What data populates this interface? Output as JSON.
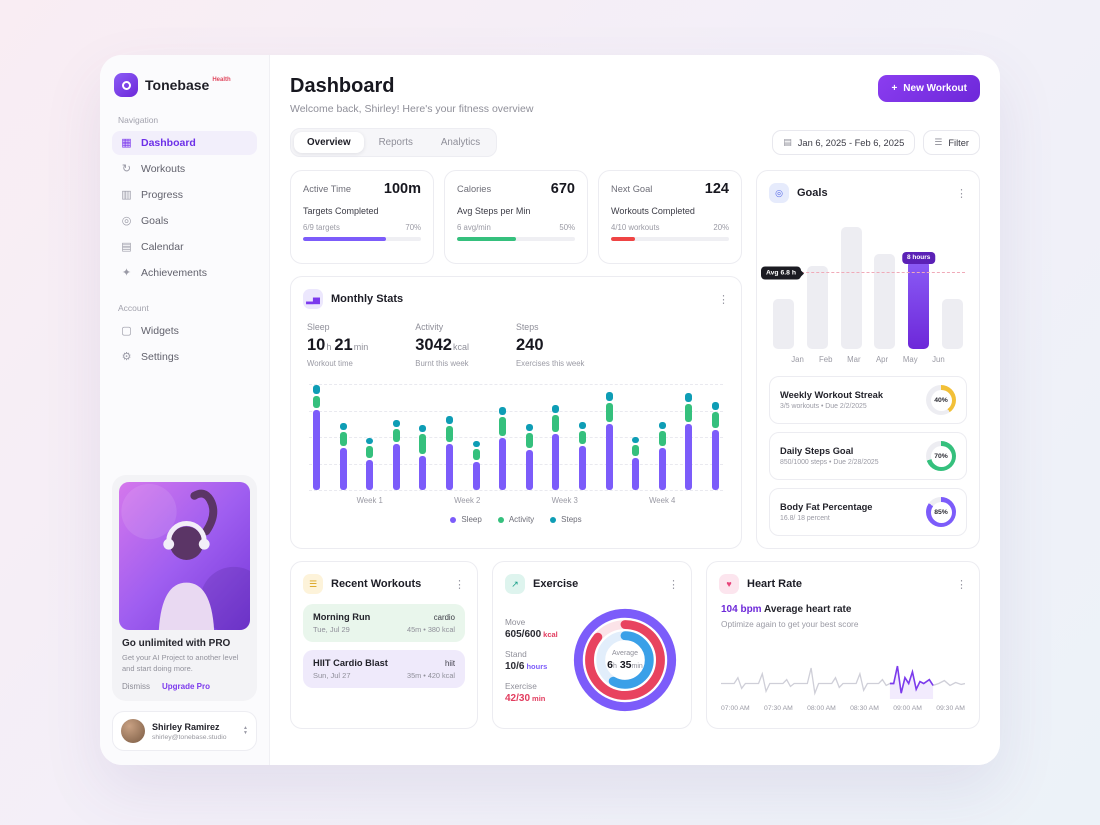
{
  "brand": {
    "name": "Tonebase",
    "badge": "Health"
  },
  "sidebar": {
    "nav_label": "Navigation",
    "nav_items": [
      {
        "label": "Dashboard",
        "glyph": "▦",
        "active": true
      },
      {
        "label": "Workouts",
        "glyph": "↻",
        "active": false
      },
      {
        "label": "Progress",
        "glyph": "▥",
        "active": false
      },
      {
        "label": "Goals",
        "glyph": "◎",
        "active": false
      },
      {
        "label": "Calendar",
        "glyph": "▤",
        "active": false
      },
      {
        "label": "Achievements",
        "glyph": "✦",
        "active": false
      }
    ],
    "account_label": "Account",
    "account_items": [
      {
        "label": "Widgets",
        "glyph": "▢",
        "active": false
      },
      {
        "label": "Settings",
        "glyph": "⚙",
        "active": false
      }
    ],
    "promo": {
      "title": "Go unlimited with PRO",
      "body": "Get your AI Project to another level and start doing more.",
      "dismiss_label": "Dismiss",
      "upgrade_label": "Upgrade Pro"
    },
    "profile": {
      "name": "Shirley Ramirez",
      "email": "shirley@tonebase.studio"
    }
  },
  "header": {
    "title": "Dashboard",
    "subtitle": "Welcome back, Shirley! Here's your fitness overview",
    "new_workout_label": "New Workout",
    "plus_glyph": "+"
  },
  "tabs": [
    {
      "label": "Overview",
      "active": true
    },
    {
      "label": "Reports",
      "active": false
    },
    {
      "label": "Analytics",
      "active": false
    }
  ],
  "toolbar": {
    "date_range": "Jan 6, 2025 - Feb 6, 2025",
    "date_icon_glyph": "▤",
    "filter_label": "Filter",
    "filter_icon_glyph": "☰"
  },
  "stat_cards": [
    {
      "title": "Active Time",
      "value": "100m",
      "sub_title": "Targets Completed",
      "sub_value": "6/9 targets",
      "percent": 70,
      "percent_label": "70%",
      "color": "#7c5cfa"
    },
    {
      "title": "Calories",
      "value": "670",
      "sub_title": "Avg Steps per Min",
      "sub_value": "6 avg/min",
      "percent": 50,
      "percent_label": "50%",
      "color": "#35c07d"
    },
    {
      "title": "Next Goal",
      "value": "124",
      "sub_title": "Workouts Completed",
      "sub_value": "4/10 workouts",
      "percent": 20,
      "percent_label": "20%",
      "color": "#ef4444"
    }
  ],
  "monthly": {
    "title": "Monthly Stats",
    "icon_glyph": "▂▅",
    "stats": [
      {
        "label": "Sleep",
        "parts": [
          {
            "num": "10",
            "unit": "h"
          },
          {
            "num": "21",
            "unit": "min"
          }
        ],
        "caption": "Workout time"
      },
      {
        "label": "Activity",
        "parts": [
          {
            "num": "3042",
            "unit": "kcal"
          }
        ],
        "caption": "Burnt this week"
      },
      {
        "label": "Steps",
        "parts": [
          {
            "num": "240",
            "unit": ""
          }
        ],
        "caption": "Exercises this week"
      }
    ],
    "legend": [
      {
        "label": "Sleep",
        "color": "#7c5cfa"
      },
      {
        "label": "Activity",
        "color": "#35c07d"
      },
      {
        "label": "Steps",
        "color": "#0e9db5"
      }
    ],
    "chart": {
      "type": "stacked-bar",
      "week_labels": [
        "Week 1",
        "Week 2",
        "Week 3",
        "Week 4"
      ],
      "series_order": [
        "sleep",
        "activity",
        "steps"
      ],
      "bars": [
        [
          8.0,
          1.2,
          0.9
        ],
        [
          4.2,
          1.4,
          0.7
        ],
        [
          3.0,
          1.2,
          0.6
        ],
        [
          4.6,
          1.3,
          0.7
        ],
        [
          3.4,
          2.0,
          0.7
        ],
        [
          4.6,
          1.6,
          0.8
        ],
        [
          2.8,
          1.1,
          0.6
        ],
        [
          5.2,
          1.9,
          0.8
        ],
        [
          4.0,
          1.5,
          0.7
        ],
        [
          5.6,
          1.7,
          0.8
        ],
        [
          4.4,
          1.3,
          0.7
        ],
        [
          6.6,
          1.9,
          0.9
        ],
        [
          3.2,
          1.1,
          0.6
        ],
        [
          4.2,
          1.5,
          0.7
        ],
        [
          6.6,
          1.8,
          0.9
        ],
        [
          6.0,
          1.6,
          0.8
        ]
      ]
    }
  },
  "goals": {
    "title": "Goals",
    "icon_glyph": "◎",
    "chart": {
      "type": "bar",
      "months": [
        "Jan",
        "Feb",
        "Mar",
        "Apr",
        "May",
        "Jun"
      ],
      "values": [
        4.5,
        7.5,
        11,
        8.5,
        8,
        4.5
      ],
      "ymax": 11.5,
      "avg": 6.8,
      "avg_label": "Avg 6.8 h",
      "highlight_index": 4,
      "tooltip": "8 hours"
    },
    "items": [
      {
        "title": "Weekly Workout Streak",
        "sub": "3/5 workouts • Due 2/2/2025",
        "percent": 40,
        "percent_label": "40%",
        "color": "#f2c038"
      },
      {
        "title": "Daily Steps Goal",
        "sub": "850/1000 steps • Due 2/28/2025",
        "percent": 70,
        "percent_label": "70%",
        "color": "#35c07d"
      },
      {
        "title": "Body Fat Percentage",
        "sub": "16.8/ 18 percent",
        "percent": 85,
        "percent_label": "85%",
        "color": "#7c5cfa"
      }
    ]
  },
  "recent": {
    "title": "Recent Workouts",
    "icon_glyph": "☰",
    "items": [
      {
        "name": "Morning Run",
        "date": "Tue, Jul 29",
        "tag": "cardio",
        "meta": "45m • 380 kcal",
        "bg": "#e9f6ec"
      },
      {
        "name": "HIIT Cardio Blast",
        "date": "Sun, Jul 27",
        "tag": "hiit",
        "meta": "35m • 420 kcal",
        "bg": "#efeafb"
      }
    ]
  },
  "exercise": {
    "title": "Exercise",
    "icon_glyph": "↗",
    "metrics": [
      {
        "label": "Move",
        "value": "605/600",
        "unit": "kcal",
        "value_color": "#2b2b33",
        "unit_color": "#e23d5f"
      },
      {
        "label": "Stand",
        "value": "10/6",
        "unit": "hours",
        "value_color": "#2b2b33",
        "unit_color": "#7c5cfa"
      },
      {
        "label": "Exercise",
        "value": "42/30",
        "unit": "min",
        "value_color": "#e23d5f",
        "unit_color": "#e23d5f"
      }
    ],
    "rings": [
      {
        "percent": 100,
        "color": "#7c5cfa",
        "track": "#eceafc"
      },
      {
        "percent": 86,
        "color": "#e8435f",
        "track": "#fbe3e8"
      },
      {
        "percent": 58,
        "color": "#3aa0e8",
        "track": "#e2eefb"
      }
    ],
    "center": {
      "label": "Average",
      "h": "6",
      "h_unit": "h",
      "m": "35",
      "m_unit": "min"
    }
  },
  "heart": {
    "title": "Heart Rate",
    "icon_glyph": "♥",
    "value": "104 bpm",
    "caption": "Average heart rate",
    "sub": "Optimize again to get your best score",
    "times": [
      "07:00 AM",
      "07:30 AM",
      "08:00 AM",
      "08:30 AM",
      "09:00 AM",
      "09:30 AM"
    ],
    "chart": {
      "type": "line",
      "points": [
        [
          0,
          48
        ],
        [
          14,
          48
        ],
        [
          18,
          42
        ],
        [
          22,
          53
        ],
        [
          26,
          48
        ],
        [
          40,
          48
        ],
        [
          44,
          38
        ],
        [
          48,
          56
        ],
        [
          52,
          48
        ],
        [
          66,
          48
        ],
        [
          70,
          44
        ],
        [
          74,
          51
        ],
        [
          78,
          48
        ],
        [
          92,
          48
        ],
        [
          96,
          32
        ],
        [
          100,
          58
        ],
        [
          104,
          48
        ],
        [
          118,
          48
        ],
        [
          122,
          42
        ],
        [
          126,
          52
        ],
        [
          130,
          48
        ],
        [
          144,
          48
        ],
        [
          148,
          38
        ],
        [
          152,
          55
        ],
        [
          156,
          48
        ],
        [
          168,
          48
        ],
        [
          172,
          44
        ],
        [
          176,
          50
        ],
        [
          180,
          48
        ],
        [
          184,
          48
        ],
        [
          188,
          30
        ],
        [
          192,
          58
        ],
        [
          196,
          42
        ],
        [
          200,
          48
        ],
        [
          204,
          36
        ],
        [
          208,
          54
        ],
        [
          212,
          46
        ],
        [
          216,
          48
        ],
        [
          222,
          44
        ],
        [
          226,
          50
        ],
        [
          232,
          48
        ],
        [
          238,
          45
        ],
        [
          244,
          50
        ],
        [
          250,
          47
        ],
        [
          256,
          49
        ],
        [
          260,
          48
        ]
      ],
      "highlight_start": 28,
      "highlight_end": 39,
      "line_color": "#cfcfd8",
      "highlight_color": "#7c3aed"
    }
  }
}
